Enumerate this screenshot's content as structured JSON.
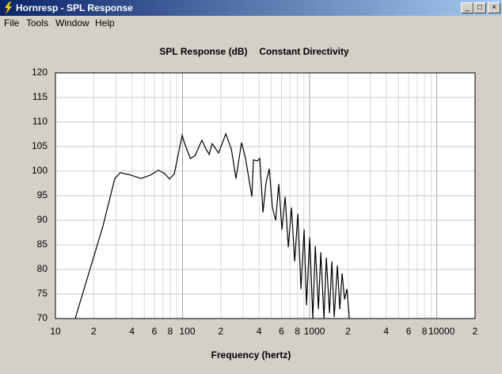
{
  "window": {
    "title": "Hornresp - SPL Response",
    "menu": [
      "File",
      "Tools",
      "Window",
      "Help"
    ]
  },
  "chart_data": {
    "type": "line",
    "title": "SPL Response (dB)",
    "subtitle": "Constant Directivity",
    "x_label": "Frequency (hertz)",
    "x": [
      14.3,
      19.1,
      23.7,
      29.3,
      32.4,
      39.1,
      47.1,
      55.9,
      64.6,
      72.4,
      78.9,
      86,
      93.8,
      99.3,
      105,
      115,
      125,
      142,
      153,
      162,
      171,
      192,
      219,
      242,
      263,
      291,
      313,
      336,
      351,
      361,
      388,
      405,
      429,
      454,
      481,
      509,
      540,
      571,
      605,
      641,
      679,
      719,
      762,
      807,
      854,
      904,
      944,
      1000,
      1059,
      1107,
      1172,
      1223,
      1295,
      1352,
      1432,
      1494,
      1560,
      1652,
      1726,
      1800,
      1880,
      1963,
      2051
    ],
    "values": [
      70,
      80.8,
      88.9,
      98.5,
      99.7,
      99.2,
      98.5,
      99.2,
      100.2,
      99.5,
      98.4,
      99.4,
      104.2,
      107.3,
      105.3,
      102.6,
      103.1,
      106.3,
      104.5,
      103.4,
      105.6,
      103.7,
      107.6,
      104.5,
      98.5,
      105.8,
      102.6,
      97.7,
      94.8,
      102.3,
      102.1,
      102.6,
      91.6,
      97.7,
      100.5,
      92.6,
      90,
      97.4,
      88.1,
      94.8,
      84.5,
      92.6,
      81.6,
      91.3,
      76,
      88.1,
      72.7,
      86.5,
      70,
      84.8,
      71.9,
      83.5,
      70,
      82.4,
      71.1,
      81.6,
      70.3,
      80.8,
      71.9,
      79.2,
      73.9,
      76,
      70
    ],
    "color": "#000000",
    "xlim": [
      10,
      20000
    ],
    "ylim": [
      70,
      120
    ],
    "log_x": true,
    "grid": true,
    "xticks": [
      10,
      {
        "value": 20,
        "label": "2"
      },
      {
        "value": 40,
        "label": "4"
      },
      {
        "value": 60,
        "label": "6"
      },
      {
        "value": 80,
        "label": "8"
      },
      100,
      {
        "value": 200,
        "label": "2"
      },
      {
        "value": 400,
        "label": "4"
      },
      {
        "value": 600,
        "label": "6"
      },
      {
        "value": 800,
        "label": "8"
      },
      1000,
      {
        "value": 2000,
        "label": "2"
      },
      {
        "value": 4000,
        "label": "4"
      },
      {
        "value": 6000,
        "label": "6"
      },
      {
        "value": 8000,
        "label": "8"
      },
      10000,
      {
        "value": 20000,
        "label": "2"
      }
    ],
    "xminorticks": [
      30,
      50,
      70,
      90,
      300,
      500,
      700,
      900,
      3000,
      5000,
      7000,
      9000
    ],
    "yticks": [
      70,
      75,
      80,
      85,
      90,
      95,
      100,
      105,
      110,
      115,
      120
    ]
  }
}
